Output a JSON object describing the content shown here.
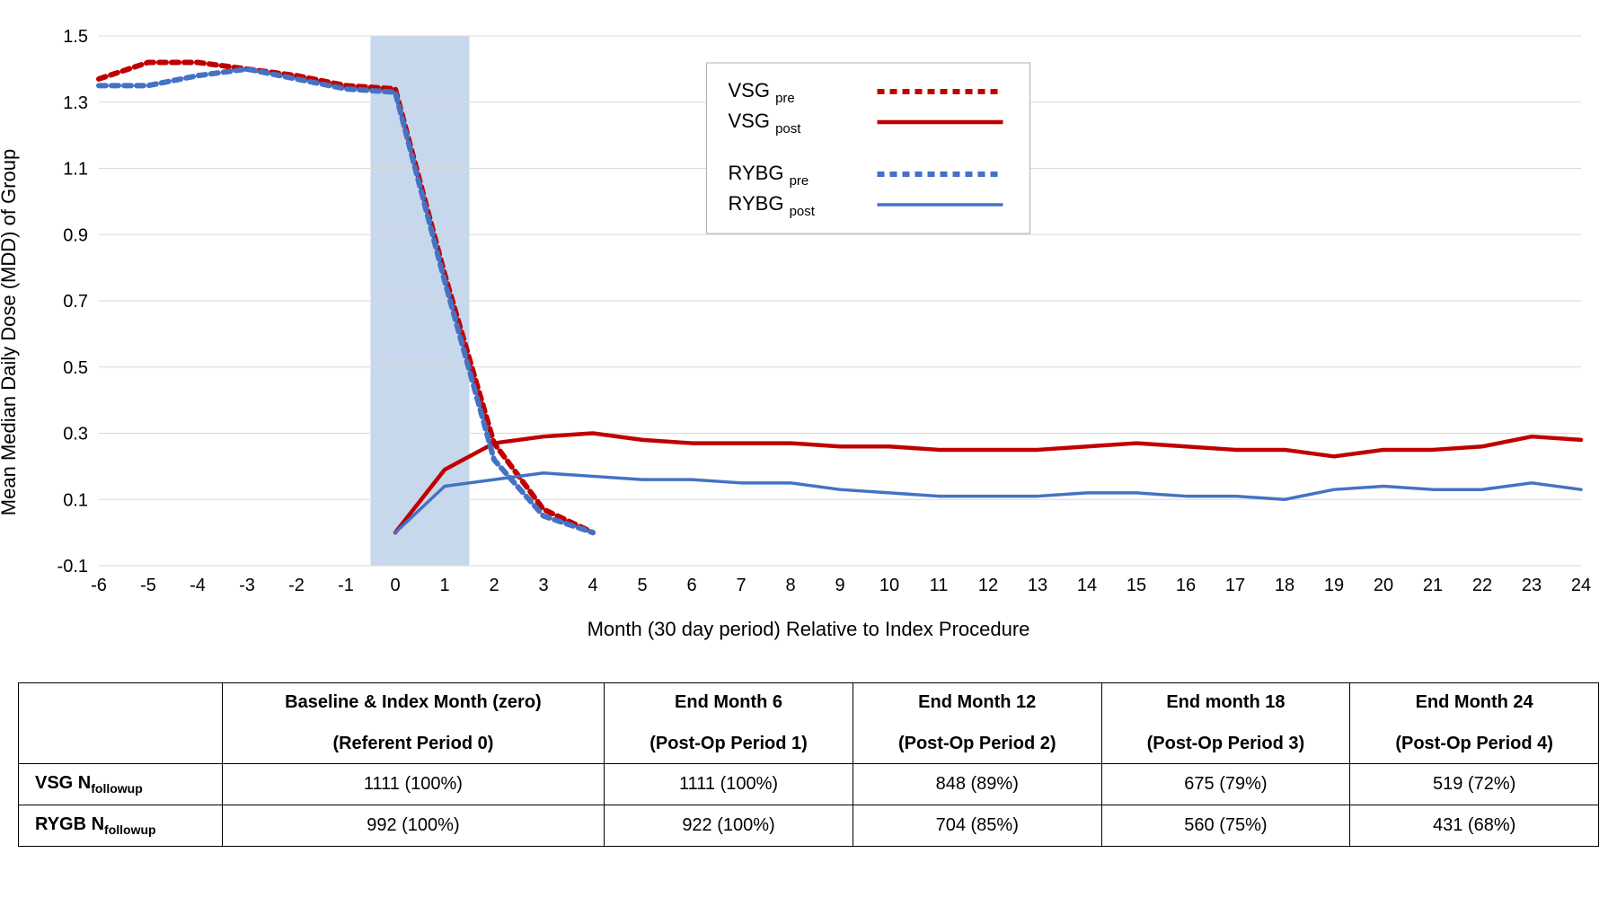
{
  "chart": {
    "type": "line",
    "ylabel": "Mean Median Daily Dose (MDD) of Group",
    "xlabel": "Month (30 day period) Relative to Index Procedure",
    "ylim": [
      -0.1,
      1.5
    ],
    "ytick_step": 0.2,
    "yticks": [
      "-0.1",
      "0.1",
      "0.3",
      "0.5",
      "0.7",
      "0.9",
      "1.1",
      "1.3",
      "1.5"
    ],
    "xlim": [
      -6,
      24
    ],
    "xticks": [
      -6,
      -5,
      -4,
      -3,
      -2,
      -1,
      0,
      1,
      2,
      3,
      4,
      5,
      6,
      7,
      8,
      9,
      10,
      11,
      12,
      13,
      14,
      15,
      16,
      17,
      18,
      19,
      20,
      21,
      22,
      23,
      24
    ],
    "grid_color": "#d9d9d9",
    "background_color": "#ffffff",
    "shade_band": {
      "xstart": -0.5,
      "xend": 1.5,
      "fill": "#c7d7ec"
    },
    "label_fontsize": 22,
    "tick_fontsize": 20,
    "legend": {
      "items": [
        {
          "label_main": "VSG",
          "label_sub": "pre",
          "color": "#c00000",
          "dash": "8,6",
          "width": 6
        },
        {
          "label_main": "VSG",
          "label_sub": "post",
          "color": "#c00000",
          "dash": "",
          "width": 4.5
        },
        {
          "label_main": "RYBG",
          "label_sub": "pre",
          "color": "#4472c4",
          "dash": "8,6",
          "width": 6
        },
        {
          "label_main": "RYBG",
          "label_sub": "post",
          "color": "#4472c4",
          "dash": "",
          "width": 3.5
        }
      ]
    },
    "series": [
      {
        "name": "VSG_pre",
        "color": "#c00000",
        "dash": "8,6",
        "width": 6,
        "x": [
          -6,
          -5,
          -4,
          -3,
          -2,
          -1,
          0,
          1,
          2,
          3,
          4
        ],
        "y": [
          1.37,
          1.42,
          1.42,
          1.4,
          1.38,
          1.35,
          1.34,
          0.78,
          0.27,
          0.07,
          0.0
        ]
      },
      {
        "name": "VSG_post",
        "color": "#c00000",
        "dash": "",
        "width": 4.5,
        "x": [
          0,
          1,
          2,
          3,
          4,
          5,
          6,
          7,
          8,
          9,
          10,
          11,
          12,
          13,
          14,
          15,
          16,
          17,
          18,
          19,
          20,
          21,
          22,
          23,
          24
        ],
        "y": [
          0.0,
          0.19,
          0.27,
          0.29,
          0.3,
          0.28,
          0.27,
          0.27,
          0.27,
          0.26,
          0.26,
          0.25,
          0.25,
          0.25,
          0.26,
          0.27,
          0.26,
          0.25,
          0.25,
          0.23,
          0.25,
          0.25,
          0.26,
          0.29,
          0.28
        ]
      },
      {
        "name": "RYBG_pre",
        "color": "#4472c4",
        "dash": "8,6",
        "width": 6,
        "x": [
          -6,
          -5,
          -4,
          -3,
          -2,
          -1,
          0,
          1,
          2,
          3,
          4
        ],
        "y": [
          1.35,
          1.35,
          1.38,
          1.4,
          1.37,
          1.34,
          1.33,
          0.76,
          0.22,
          0.05,
          0.0
        ]
      },
      {
        "name": "RYBG_post",
        "color": "#4472c4",
        "dash": "",
        "width": 3.5,
        "x": [
          0,
          1,
          2,
          3,
          4,
          5,
          6,
          7,
          8,
          9,
          10,
          11,
          12,
          13,
          14,
          15,
          16,
          17,
          18,
          19,
          20,
          21,
          22,
          23,
          24
        ],
        "y": [
          0.0,
          0.14,
          0.16,
          0.18,
          0.17,
          0.16,
          0.16,
          0.15,
          0.15,
          0.13,
          0.12,
          0.11,
          0.11,
          0.11,
          0.12,
          0.12,
          0.11,
          0.11,
          0.1,
          0.13,
          0.14,
          0.13,
          0.13,
          0.15,
          0.13
        ]
      }
    ]
  },
  "table": {
    "columns": [
      {
        "head1": "Baseline & Index Month (zero)",
        "head2": "(Referent Period 0)"
      },
      {
        "head1": "End Month 6",
        "head2": "(Post-Op Period 1)"
      },
      {
        "head1": "End Month 12",
        "head2": "(Post-Op Period 2)"
      },
      {
        "head1": "End month 18",
        "head2": "(Post-Op Period 3)"
      },
      {
        "head1": "End Month 24",
        "head2": "(Post-Op Period 4)"
      }
    ],
    "rows": [
      {
        "label_main": "VSG N",
        "label_sub": "followup",
        "cells": [
          "1111 (100%)",
          "1111 (100%)",
          "848 (89%)",
          "675 (79%)",
          "519 (72%)"
        ]
      },
      {
        "label_main": "RYGB N",
        "label_sub": "followup",
        "cells": [
          "992 (100%)",
          "922 (100%)",
          "704 (85%)",
          "560 (75%)",
          "431 (68%)"
        ]
      }
    ]
  }
}
